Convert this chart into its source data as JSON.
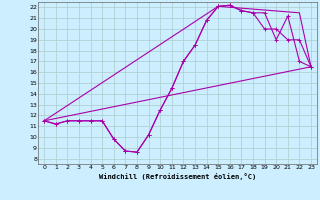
{
  "bg_color": "#cceeff",
  "grid_color": "#aacccc",
  "line_color": "#aa00aa",
  "xlim": [
    -0.5,
    23.5
  ],
  "ylim": [
    7.5,
    22.5
  ],
  "yticks": [
    8,
    9,
    10,
    11,
    12,
    13,
    14,
    15,
    16,
    17,
    18,
    19,
    20,
    21,
    22
  ],
  "xticks": [
    0,
    1,
    2,
    3,
    4,
    5,
    6,
    7,
    8,
    9,
    10,
    11,
    12,
    13,
    14,
    15,
    16,
    17,
    18,
    19,
    20,
    21,
    22,
    23
  ],
  "xlabel": "Windchill (Refroidissement éolien,°C)",
  "line1_x": [
    0,
    1,
    2,
    3,
    4,
    5,
    6,
    7,
    8,
    9,
    10,
    11,
    12,
    13,
    14,
    15,
    16,
    17,
    18,
    19,
    20,
    21,
    22,
    23
  ],
  "line1_y": [
    11.5,
    11.2,
    11.5,
    11.5,
    11.5,
    11.5,
    9.8,
    8.7,
    8.6,
    10.2,
    12.5,
    14.5,
    17.0,
    18.5,
    20.8,
    22.1,
    22.2,
    21.7,
    21.5,
    21.5,
    19.0,
    21.2,
    17.0,
    16.5
  ],
  "line2_x": [
    0,
    1,
    2,
    3,
    4,
    5,
    6,
    7,
    8,
    9,
    10,
    11,
    12,
    13,
    14,
    15,
    16,
    17,
    18,
    19,
    20,
    21,
    22,
    23
  ],
  "line2_y": [
    11.5,
    11.2,
    11.5,
    11.5,
    11.5,
    11.5,
    9.8,
    8.7,
    8.6,
    10.2,
    12.5,
    14.5,
    17.0,
    18.5,
    20.8,
    22.1,
    22.2,
    21.7,
    21.5,
    20.0,
    20.0,
    19.0,
    19.0,
    16.5
  ],
  "line3_x": [
    0,
    23
  ],
  "line3_y": [
    11.5,
    16.5
  ],
  "line4_x": [
    0,
    15,
    22,
    23
  ],
  "line4_y": [
    11.5,
    22.1,
    21.5,
    16.5
  ]
}
